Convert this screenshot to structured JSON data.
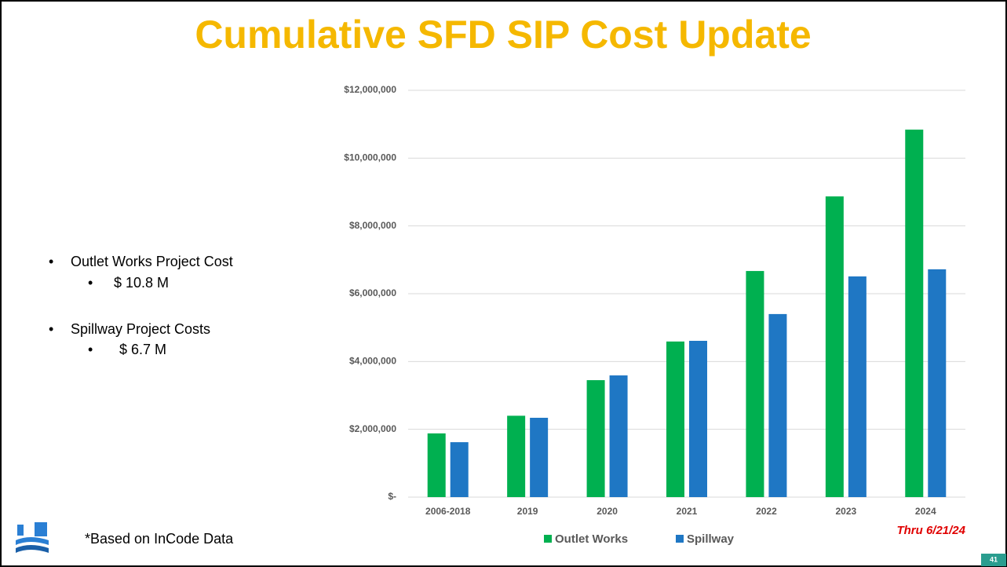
{
  "slide": {
    "title": "Cumulative SFD SIP Cost Update",
    "bullets": [
      {
        "text": "Outlet Works Project Cost",
        "sub": "$ 10.8 M"
      },
      {
        "text": "Spillway Project Costs",
        "sub": "$ 6.7 M"
      }
    ],
    "footnote": "*Based on InCode Data",
    "page_number": "41"
  },
  "chart_data": {
    "type": "bar",
    "categories": [
      "2006-2018",
      "2019",
      "2020",
      "2021",
      "2022",
      "2023",
      "2024"
    ],
    "series": [
      {
        "name": "Outlet Works",
        "color": "#00b050",
        "values": [
          1880000,
          2400000,
          3450000,
          4590000,
          6670000,
          8870000,
          10840000
        ]
      },
      {
        "name": "Spillway",
        "color": "#1f77c4",
        "values": [
          1620000,
          2340000,
          3590000,
          4610000,
          5400000,
          6510000,
          6720000
        ]
      }
    ],
    "ylim": [
      0,
      12000000
    ],
    "yticks": [
      {
        "value": 0,
        "label": "$-"
      },
      {
        "value": 2000000,
        "label": "$2,000,000"
      },
      {
        "value": 4000000,
        "label": "$4,000,000"
      },
      {
        "value": 6000000,
        "label": "$6,000,000"
      },
      {
        "value": 8000000,
        "label": "$8,000,000"
      },
      {
        "value": 10000000,
        "label": "$10,000,000"
      },
      {
        "value": 12000000,
        "label": "$12,000,000"
      }
    ],
    "grid": true,
    "legend": "bottom",
    "annotation": "Thru 6/21/24"
  }
}
